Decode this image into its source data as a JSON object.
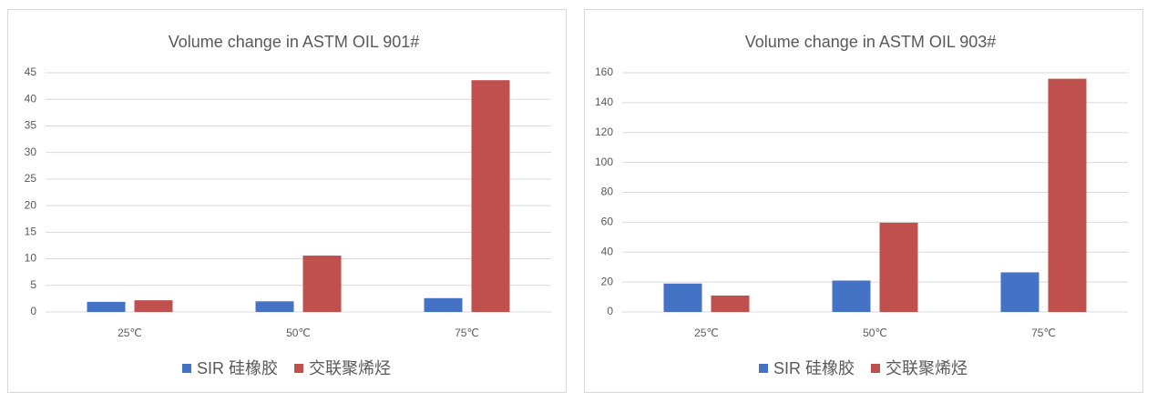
{
  "chart_data": [
    {
      "type": "bar",
      "title": "Volume change in ASTM OIL 901#",
      "categories": [
        "25℃",
        "50℃",
        "75℃"
      ],
      "series": [
        {
          "name": "SIR 硅橡胶",
          "color": "#4472c4",
          "values": [
            1.9,
            2.0,
            2.6
          ]
        },
        {
          "name": "交联聚烯烃",
          "color": "#c0504d",
          "values": [
            2.2,
            10.6,
            43.6
          ]
        }
      ],
      "ylim": [
        0,
        45
      ],
      "yticks": [
        0,
        5,
        10,
        15,
        20,
        25,
        30,
        35,
        40,
        45
      ],
      "grid": true,
      "legend": "bottom"
    },
    {
      "type": "bar",
      "title": "Volume change in ASTM OIL 903#",
      "categories": [
        "25℃",
        "50℃",
        "75℃"
      ],
      "series": [
        {
          "name": "SIR 硅橡胶",
          "color": "#4472c4",
          "values": [
            19,
            21,
            26.5
          ]
        },
        {
          "name": "交联聚烯烃",
          "color": "#c0504d",
          "values": [
            11,
            59.7,
            156
          ]
        }
      ],
      "ylim": [
        0,
        160
      ],
      "yticks": [
        0,
        20,
        40,
        60,
        80,
        100,
        120,
        140,
        160
      ],
      "grid": true,
      "legend": "bottom"
    }
  ]
}
